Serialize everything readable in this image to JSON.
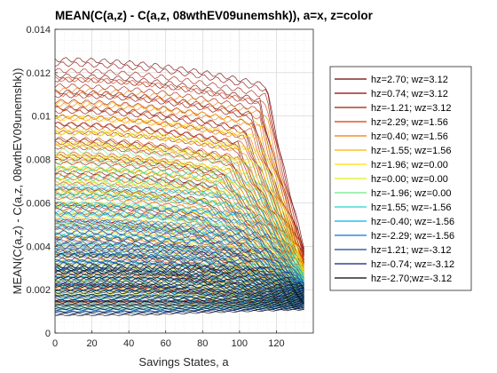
{
  "chart_data": {
    "type": "line",
    "title": "MEAN(C(a,z) - C(a,z, 08wthEV09unemshk)), a=x, z=color",
    "xlabel": "Savings States, a",
    "ylabel": "MEAN(C(a,z) - C(a,z, 08wthEV09unemshk))",
    "xlim": [
      0,
      140
    ],
    "ylim": [
      0,
      0.014
    ],
    "xticks": [
      0,
      20,
      40,
      60,
      80,
      100,
      120
    ],
    "xtick_labels": [
      "0",
      "20",
      "40",
      "60",
      "80",
      "100",
      "120"
    ],
    "yticks": [
      0,
      0.002,
      0.004,
      0.006,
      0.008,
      0.01,
      0.012,
      0.014
    ],
    "ytick_labels": [
      "0",
      "0.002",
      "0.004",
      "0.006",
      "0.008",
      "0.01",
      "0.012",
      "0.014"
    ],
    "grid": true,
    "legend_position": "right",
    "series_note_x_max": 135,
    "series": [
      {
        "name": "hz=2.70; wz=3.12",
        "color": "#6b0000",
        "start": 0.0126,
        "end": 0.004
      },
      {
        "name": "hz=0.74; wz=3.12",
        "color": "#8b0000",
        "start": 0.0124,
        "end": 0.0038
      },
      {
        "name": "hz=-1.21; wz=3.12",
        "color": "#a01a00",
        "start": 0.0121,
        "end": 0.0036
      },
      {
        "name": "hz=2.29; wz=1.56",
        "color": "#d43a00",
        "start": 0.0117,
        "end": 0.0034
      },
      {
        "name": "hz=0.40; wz=1.56",
        "color": "#f07a00",
        "start": 0.0112,
        "end": 0.0032
      },
      {
        "name": "hz=-1.55; wz=1.56",
        "color": "#ffb000",
        "start": 0.0106,
        "end": 0.003
      },
      {
        "name": "hz=1.96; wz=0.00",
        "color": "#ffe000",
        "start": 0.0099,
        "end": 0.0029
      },
      {
        "name": "hz=0.00; wz=0.00",
        "color": "#d8f020",
        "start": 0.0092,
        "end": 0.0028
      },
      {
        "name": "hz=-1.96; wz=0.00",
        "color": "#70e880",
        "start": 0.0084,
        "end": 0.0027
      },
      {
        "name": "hz=1.55; wz=-1.56",
        "color": "#20d8c8",
        "start": 0.0076,
        "end": 0.0026
      },
      {
        "name": "hz=-0.40; wz=-1.56",
        "color": "#00b0e8",
        "start": 0.0067,
        "end": 0.0025
      },
      {
        "name": "hz=-2.29; wz=-1.56",
        "color": "#1070d0",
        "start": 0.0058,
        "end": 0.0024
      },
      {
        "name": "hz=1.21; wz=-3.12",
        "color": "#1040a0",
        "start": 0.0049,
        "end": 0.0023
      },
      {
        "name": "hz=-0.74; wz=-3.12",
        "color": "#0a2070",
        "start": 0.004,
        "end": 0.0022
      },
      {
        "name": "hz=-2.70;wz=-3.12",
        "color": "#000000",
        "start": 0.0031,
        "end": 0.0021
      }
    ]
  }
}
